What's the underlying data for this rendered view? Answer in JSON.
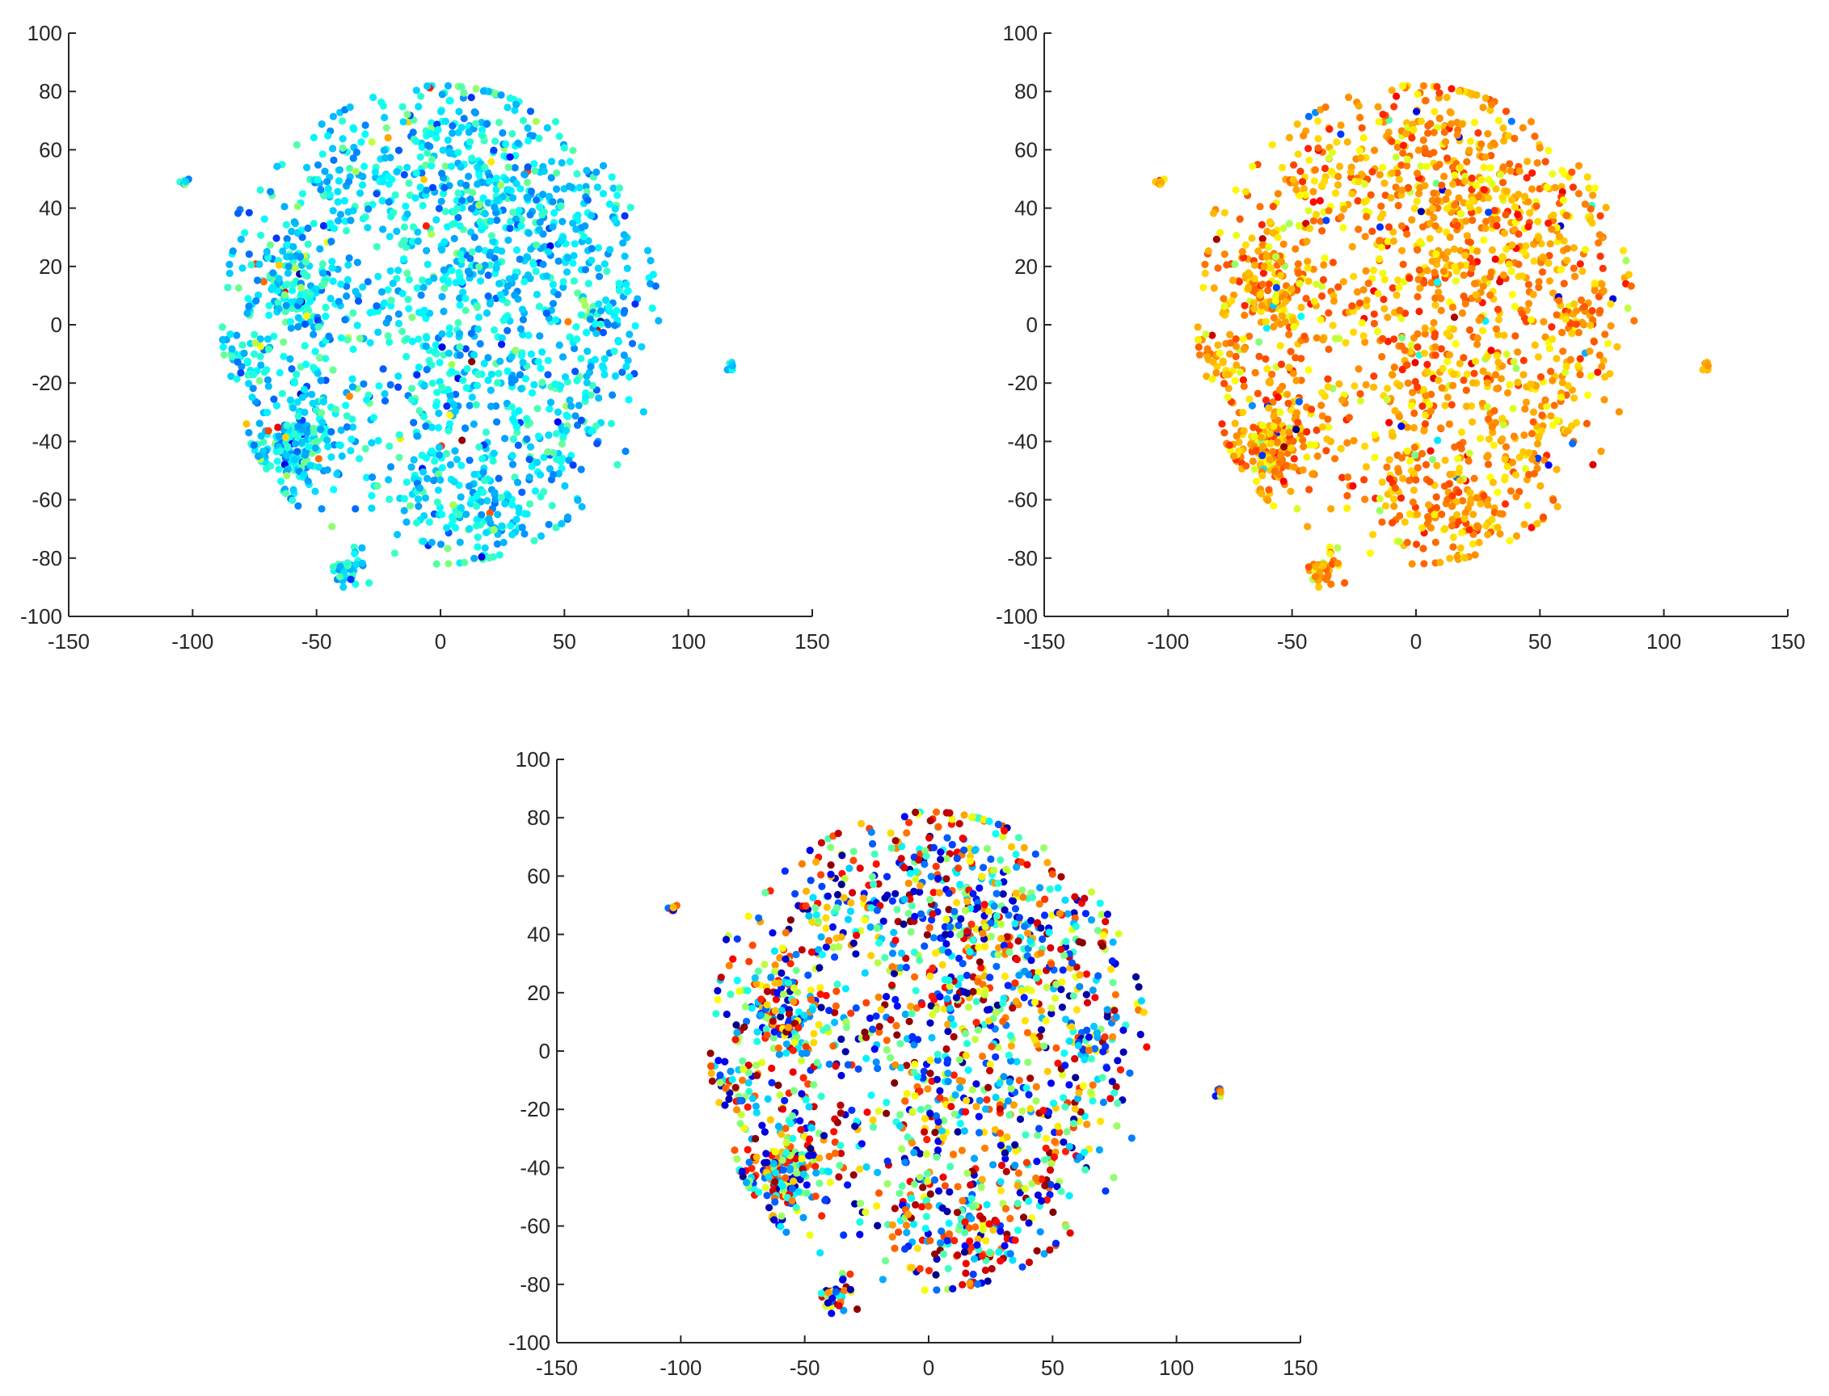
{
  "chart_data": [
    {
      "type": "scatter",
      "panel": "top-left",
      "title": "",
      "xlabel": "",
      "ylabel": "",
      "xlim": [
        -150,
        150
      ],
      "ylim": [
        -100,
        100
      ],
      "xticks": [
        "-150",
        "-100",
        "-50",
        "0",
        "50",
        "100",
        "150"
      ],
      "yticks": [
        "-100",
        "-80",
        "-60",
        "-40",
        "-20",
        "0",
        "20",
        "40",
        "60",
        "80",
        "100"
      ],
      "grid": false,
      "legend": "none",
      "colormap": "jet",
      "color_value_range": [
        0,
        1
      ],
      "dominant_color_value": 0.35,
      "point_count": 1800,
      "clusters": [
        {
          "x": -40,
          "y": 45,
          "sd": 16,
          "n": 140
        },
        {
          "x": 20,
          "y": 55,
          "sd": 15,
          "n": 160
        },
        {
          "x": -5,
          "y": 65,
          "sd": 10,
          "n": 70
        },
        {
          "x": -65,
          "y": 15,
          "sd": 10,
          "n": 90
        },
        {
          "x": -50,
          "y": 5,
          "sd": 13,
          "n": 110
        },
        {
          "x": -80,
          "y": -10,
          "sd": 6,
          "n": 40
        },
        {
          "x": -55,
          "y": -35,
          "sd": 12,
          "n": 150
        },
        {
          "x": -60,
          "y": -45,
          "sd": 8,
          "n": 90
        },
        {
          "x": 0,
          "y": -15,
          "sd": 10,
          "n": 70
        },
        {
          "x": 15,
          "y": 30,
          "sd": 18,
          "n": 150
        },
        {
          "x": 55,
          "y": 30,
          "sd": 15,
          "n": 130
        },
        {
          "x": 45,
          "y": -30,
          "sd": 16,
          "n": 170
        },
        {
          "x": 70,
          "y": 0,
          "sd": 10,
          "n": 70
        },
        {
          "x": 15,
          "y": -60,
          "sd": 13,
          "n": 160
        },
        {
          "x": -15,
          "y": -50,
          "sd": 12,
          "n": 60
        },
        {
          "x": 0,
          "y": 5,
          "sd": 25,
          "n": 170
        },
        {
          "x": -37,
          "y": -84,
          "sd": 3,
          "n": 40
        },
        {
          "x": 117,
          "y": -14,
          "sd": 0.8,
          "n": 10
        },
        {
          "x": -103,
          "y": 49,
          "sd": 0.8,
          "n": 8
        },
        {
          "x": -82,
          "y": 39,
          "sd": 1,
          "n": 2
        }
      ]
    },
    {
      "type": "scatter",
      "panel": "top-right",
      "title": "",
      "xlabel": "",
      "ylabel": "",
      "xlim": [
        -150,
        150
      ],
      "ylim": [
        -100,
        100
      ],
      "xticks": [
        "-150",
        "-100",
        "-50",
        "0",
        "50",
        "100",
        "150"
      ],
      "yticks": [
        "-100",
        "-80",
        "-60",
        "-40",
        "-20",
        "0",
        "20",
        "40",
        "60",
        "80",
        "100"
      ],
      "grid": false,
      "legend": "none",
      "colormap": "jet",
      "color_value_range": [
        0,
        1
      ],
      "dominant_color_value": 0.72,
      "point_count": 1800,
      "clusters": [
        {
          "x": -40,
          "y": 45,
          "sd": 16,
          "n": 140
        },
        {
          "x": 20,
          "y": 55,
          "sd": 15,
          "n": 160
        },
        {
          "x": -5,
          "y": 65,
          "sd": 10,
          "n": 70
        },
        {
          "x": -65,
          "y": 15,
          "sd": 10,
          "n": 90
        },
        {
          "x": -50,
          "y": 5,
          "sd": 13,
          "n": 110
        },
        {
          "x": -80,
          "y": -10,
          "sd": 6,
          "n": 40
        },
        {
          "x": -55,
          "y": -35,
          "sd": 12,
          "n": 150
        },
        {
          "x": -60,
          "y": -45,
          "sd": 8,
          "n": 90
        },
        {
          "x": 0,
          "y": -15,
          "sd": 10,
          "n": 70
        },
        {
          "x": 15,
          "y": 30,
          "sd": 18,
          "n": 150
        },
        {
          "x": 55,
          "y": 30,
          "sd": 15,
          "n": 130
        },
        {
          "x": 45,
          "y": -30,
          "sd": 16,
          "n": 170
        },
        {
          "x": 70,
          "y": 0,
          "sd": 10,
          "n": 70
        },
        {
          "x": 15,
          "y": -60,
          "sd": 13,
          "n": 160
        },
        {
          "x": -15,
          "y": -50,
          "sd": 12,
          "n": 60
        },
        {
          "x": 0,
          "y": 5,
          "sd": 25,
          "n": 170
        },
        {
          "x": -37,
          "y": -84,
          "sd": 3,
          "n": 40
        },
        {
          "x": 117,
          "y": -14,
          "sd": 0.8,
          "n": 10
        },
        {
          "x": -103,
          "y": 49,
          "sd": 0.8,
          "n": 8
        },
        {
          "x": -82,
          "y": 39,
          "sd": 1,
          "n": 2
        }
      ]
    },
    {
      "type": "scatter",
      "panel": "bottom-center",
      "title": "",
      "xlabel": "",
      "ylabel": "",
      "xlim": [
        -150,
        150
      ],
      "ylim": [
        -100,
        100
      ],
      "xticks": [
        "-150",
        "-100",
        "-50",
        "0",
        "50",
        "100",
        "150"
      ],
      "yticks": [
        "-100",
        "-80",
        "-60",
        "-40",
        "-20",
        "0",
        "20",
        "40",
        "60",
        "80",
        "100"
      ],
      "grid": false,
      "legend": "none",
      "colormap": "jet",
      "color_value_range": [
        0,
        1
      ],
      "dominant_color_value": null,
      "point_count": 1800,
      "clusters": [
        {
          "x": -40,
          "y": 45,
          "sd": 16,
          "n": 140
        },
        {
          "x": 20,
          "y": 55,
          "sd": 15,
          "n": 160
        },
        {
          "x": -5,
          "y": 65,
          "sd": 10,
          "n": 70
        },
        {
          "x": -65,
          "y": 15,
          "sd": 10,
          "n": 90
        },
        {
          "x": -50,
          "y": 5,
          "sd": 13,
          "n": 110
        },
        {
          "x": -80,
          "y": -10,
          "sd": 6,
          "n": 40
        },
        {
          "x": -55,
          "y": -35,
          "sd": 12,
          "n": 150
        },
        {
          "x": -60,
          "y": -45,
          "sd": 8,
          "n": 90
        },
        {
          "x": 0,
          "y": -15,
          "sd": 10,
          "n": 70
        },
        {
          "x": 15,
          "y": 30,
          "sd": 18,
          "n": 150
        },
        {
          "x": 55,
          "y": 30,
          "sd": 15,
          "n": 130
        },
        {
          "x": 45,
          "y": -30,
          "sd": 16,
          "n": 170
        },
        {
          "x": 70,
          "y": 0,
          "sd": 10,
          "n": 70
        },
        {
          "x": 15,
          "y": -60,
          "sd": 13,
          "n": 160
        },
        {
          "x": -15,
          "y": -50,
          "sd": 12,
          "n": 60
        },
        {
          "x": 0,
          "y": 5,
          "sd": 25,
          "n": 170
        },
        {
          "x": -37,
          "y": -84,
          "sd": 3,
          "n": 40
        },
        {
          "x": 117,
          "y": -14,
          "sd": 0.8,
          "n": 10
        },
        {
          "x": -103,
          "y": 49,
          "sd": 0.8,
          "n": 8
        },
        {
          "x": -82,
          "y": 39,
          "sd": 1,
          "n": 2
        }
      ]
    }
  ]
}
